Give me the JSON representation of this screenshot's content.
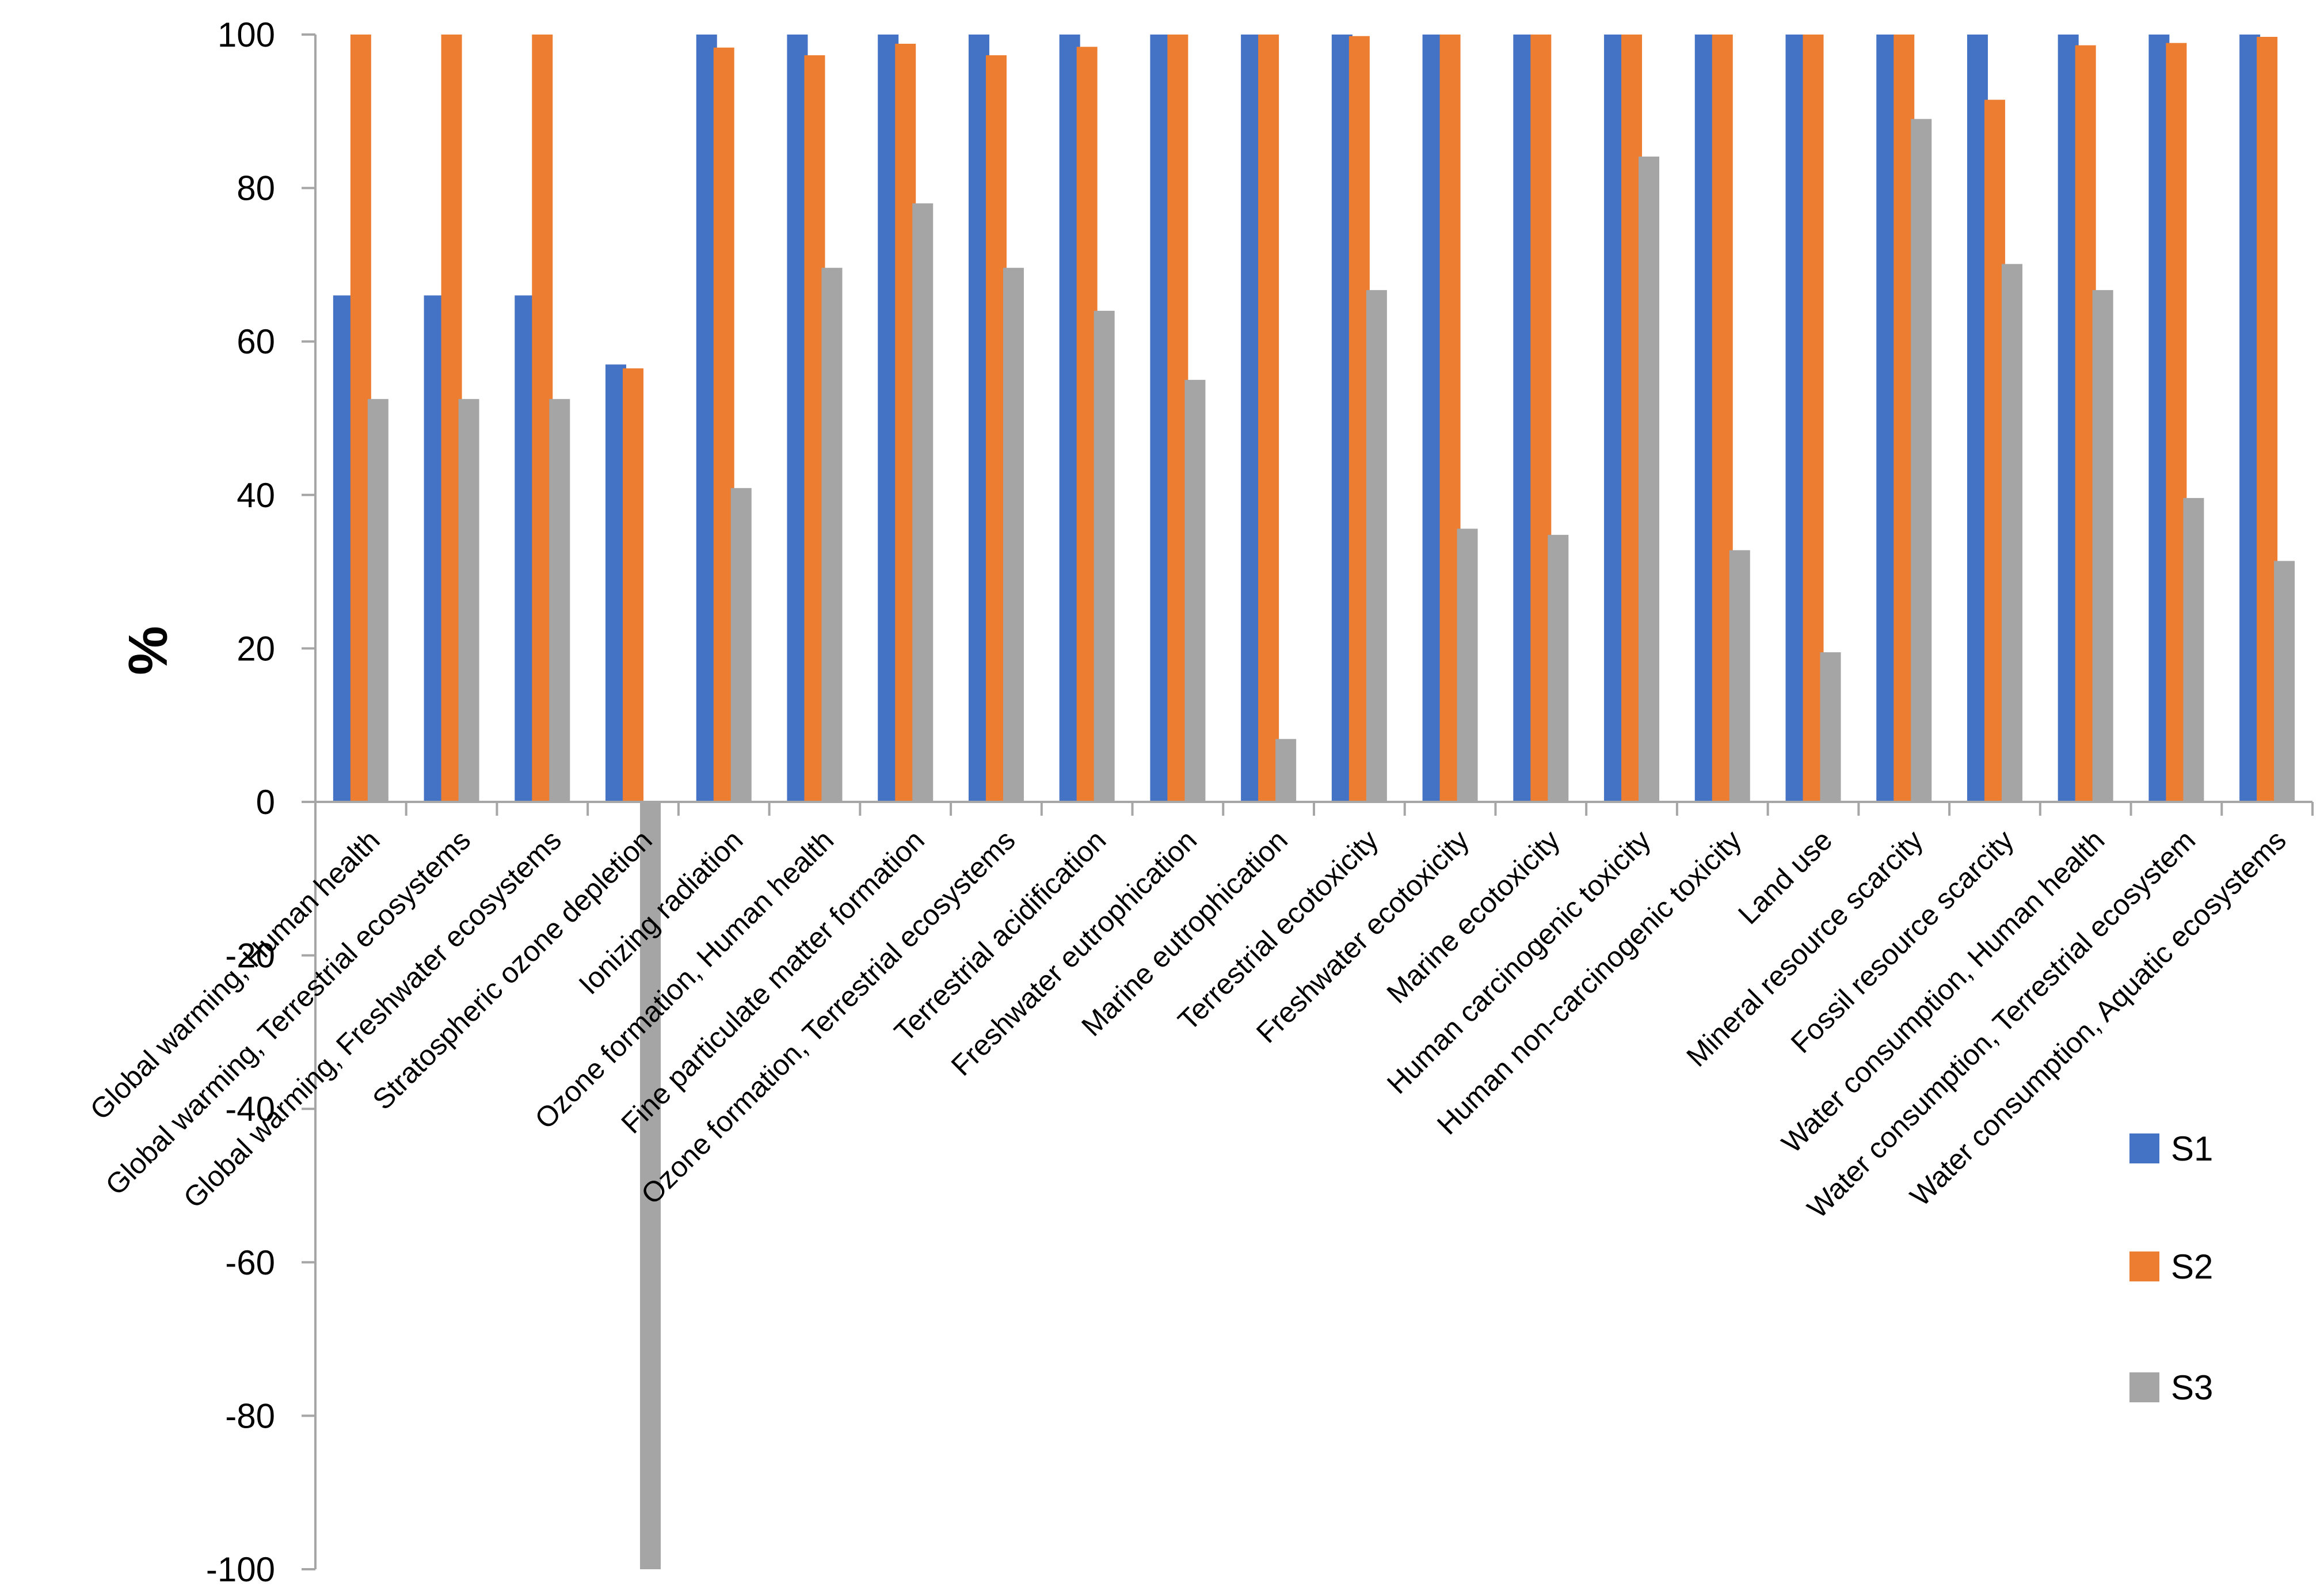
{
  "chart_data": {
    "type": "bar",
    "title": "",
    "xlabel": "",
    "ylabel": "%",
    "ylim": [
      -100,
      100
    ],
    "ytick_step": 20,
    "yticks": [
      "-100",
      "-80",
      "-60",
      "-40",
      "-20",
      "0",
      "20",
      "40",
      "60",
      "80",
      "100"
    ],
    "grid": false,
    "legend_position": "right",
    "categories": [
      "Global warming, Human health",
      "Global warming, Terrestrial ecosystems",
      "Global warming, Freshwater ecosystems",
      "Stratospheric ozone depletion",
      "Ionizing radiation",
      "Ozone formation, Human health",
      "Fine particulate matter formation",
      "Ozone formation, Terrestrial ecosystems",
      "Terrestrial acidification",
      "Freshwater eutrophication",
      "Marine eutrophication",
      "Terrestrial ecotoxicity",
      "Freshwater ecotoxicity",
      "Marine ecotoxicity",
      "Human carcinogenic toxicity",
      "Human non-carcinogenic toxicity",
      "Land use",
      "Mineral resource scarcity",
      "Fossil resource scarcity",
      "Water consumption, Human health",
      "Water consumption, Terrestrial ecosystem",
      "Water consumption, Aquatic ecosystems"
    ],
    "series": [
      {
        "name": "S1",
        "color": "#4472c4",
        "values": [
          66,
          66,
          66,
          57,
          100,
          100,
          100,
          100,
          100,
          100,
          100,
          100,
          100,
          100,
          100,
          100,
          100,
          100,
          100,
          100,
          100,
          100
        ]
      },
      {
        "name": "S2",
        "color": "#ed7d31",
        "values": [
          100,
          100,
          100,
          56.5,
          98.3,
          97.3,
          98.8,
          97.3,
          98.4,
          100,
          100,
          99.8,
          100,
          100,
          100,
          100,
          100,
          100,
          91.5,
          98.6,
          98.9,
          99.7
        ]
      },
      {
        "name": "S3",
        "color": "#a5a5a5",
        "values": [
          52.5,
          52.5,
          52.5,
          -100,
          40.9,
          69.6,
          78,
          69.6,
          64,
          55,
          8.2,
          66.7,
          35.6,
          34.8,
          84.1,
          32.8,
          19.5,
          89,
          70.1,
          66.7,
          39.6,
          31.4
        ]
      }
    ]
  }
}
